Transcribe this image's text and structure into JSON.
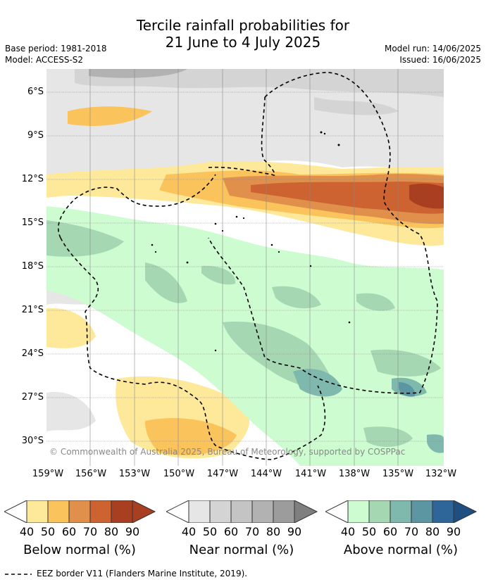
{
  "title": {
    "line1": "Tercile rainfall probabilities for",
    "line2": "21 June to 4 July 2025"
  },
  "meta": {
    "base_period": "Base period: 1981-2018",
    "model": "Model: ACCESS-S2",
    "model_run": "Model run: 14/06/2025",
    "issued": "Issued: 16/06/2025"
  },
  "map": {
    "lat_labels": [
      "6°S",
      "9°S",
      "12°S",
      "15°S",
      "18°S",
      "21°S",
      "24°S",
      "27°S",
      "30°S"
    ],
    "lon_labels": [
      "159°W",
      "156°W",
      "153°W",
      "150°W",
      "147°W",
      "144°W",
      "141°W",
      "138°W",
      "135°W",
      "132°W"
    ],
    "copyright": "© Commonwealth of Australia 2025, Bureau of Meteorology, supported by COSPPac",
    "colors": {
      "ocean_white": "#ffffff",
      "grid": "#888888",
      "eez_line": "#000000"
    }
  },
  "colorbars": [
    {
      "id": "below",
      "title": "Below normal (%)",
      "ticks": [
        "40",
        "50",
        "60",
        "70",
        "80",
        "90"
      ],
      "colors": [
        "#fde999",
        "#fbc35b",
        "#e0904a",
        "#cc6331",
        "#a93f21",
        "#a93f21"
      ]
    },
    {
      "id": "near",
      "title": "Near normal (%)",
      "ticks": [
        "40",
        "50",
        "60",
        "70",
        "80",
        "90"
      ],
      "colors": [
        "#e6e6e6",
        "#d4d4d4",
        "#c4c4c4",
        "#b2b2b2",
        "#9c9c9c",
        "#7f7f7f"
      ]
    },
    {
      "id": "above",
      "title": "Above normal (%)",
      "ticks": [
        "40",
        "50",
        "60",
        "70",
        "80",
        "90"
      ],
      "colors": [
        "#cdfcd0",
        "#a5d8b2",
        "#7fb8ad",
        "#5c96a3",
        "#2f6699",
        "#1f4f80"
      ]
    }
  ],
  "footer": {
    "legend_text": "EEZ border V11 (Flanders Marine Institute, 2019)."
  }
}
